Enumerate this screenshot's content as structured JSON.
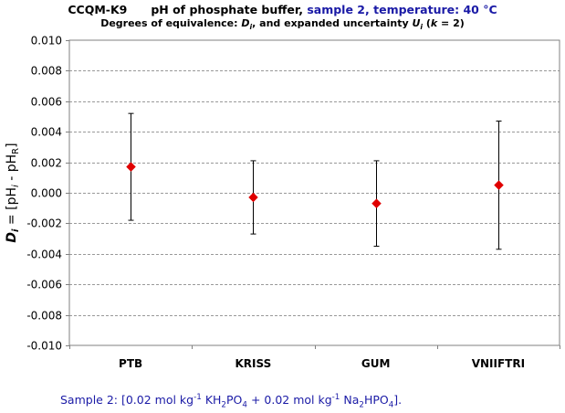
{
  "title": {
    "code": "CCQM-K9",
    "topic": "pH of phosphate buffer",
    "sample": "sample 2",
    "temperature": "temperature: 40 °C",
    "subtitle_prefix": "Degrees of equivalence: ",
    "subtitle_D": "D",
    "subtitle_i1": "i",
    "subtitle_mid": ", and expanded uncertainty ",
    "subtitle_U": "U",
    "subtitle_i2": "i",
    "subtitle_k_open": " (",
    "subtitle_k": "k",
    "subtitle_k_close": " = 2)"
  },
  "footnote": {
    "pre": "Sample 2: [0.02 mol kg",
    "exp1": "-1",
    "s1": " KH",
    "sub1": "2",
    "s2": "PO",
    "sub2": "4",
    "s3": " + 0.02 mol kg",
    "exp2": "-1",
    "s4": " Na",
    "sub3": "2",
    "s5": "HPO",
    "sub4": "4",
    "s6": "]."
  },
  "chart_data": {
    "type": "scatter",
    "title": "CCQM-K9 pH of phosphate buffer, sample 2, temperature: 40 °C",
    "subtitle": "Degrees of equivalence: Di, and expanded uncertainty Ui (k = 2)",
    "ylabel": "Di = [pHi - pHR]",
    "xlabel": "",
    "ylim": [
      -0.01,
      0.01
    ],
    "yticks": [
      0.01,
      0.008,
      0.006,
      0.004,
      0.002,
      0.0,
      -0.002,
      -0.004,
      -0.006,
      -0.008,
      -0.01
    ],
    "ytick_labels": [
      "0.010",
      "0.008",
      "0.006",
      "0.004",
      "0.002",
      "0.000",
      "-0.002",
      "-0.004",
      "-0.006",
      "-0.008",
      "-0.010"
    ],
    "grid": true,
    "categories": [
      "PTB",
      "KRISS",
      "GUM",
      "VNIIFTRI"
    ],
    "values": [
      0.0017,
      -0.0003,
      -0.0007,
      0.0005
    ],
    "uncertainty": [
      0.0035,
      0.0024,
      0.0028,
      0.0042
    ],
    "marker_color": "#e00000"
  }
}
